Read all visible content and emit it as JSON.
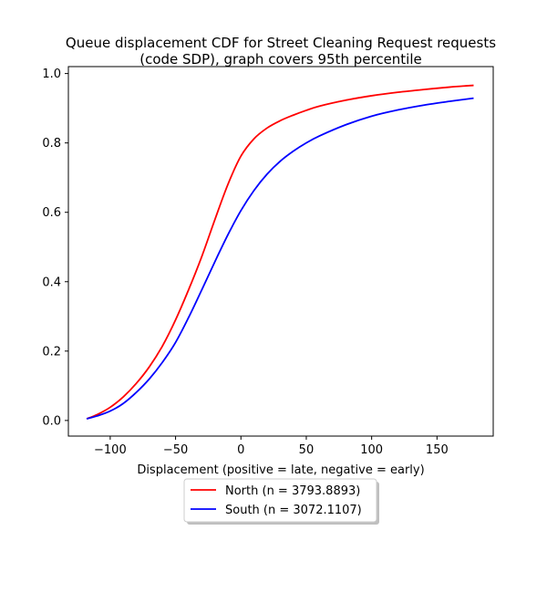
{
  "chart_data": {
    "type": "line",
    "title_lines": [
      "Queue displacement CDF for Street Cleaning Request  requests",
      "(code SDP), graph covers 95th percentile"
    ],
    "xlabel": "Displacement (positive = late, negative = early)",
    "ylabel": "",
    "xlim": [
      -132,
      193
    ],
    "ylim": [
      -0.045,
      1.02
    ],
    "xticks": [
      -100,
      -50,
      0,
      50,
      100,
      150
    ],
    "xtick_labels": [
      "−100",
      "−50",
      "0",
      "50",
      "100",
      "150"
    ],
    "yticks": [
      0.0,
      0.2,
      0.4,
      0.6,
      0.8,
      1.0
    ],
    "ytick_labels": [
      "0.0",
      "0.2",
      "0.4",
      "0.6",
      "0.8",
      "1.0"
    ],
    "grid": false,
    "legend_position": "below-center",
    "series": [
      {
        "name": "North (n = 3793.8893)",
        "color": "#ff0000",
        "x": [
          -118,
          -110,
          -100,
          -90,
          -80,
          -70,
          -60,
          -50,
          -40,
          -30,
          -20,
          -10,
          0,
          10,
          20,
          30,
          40,
          50,
          60,
          80,
          100,
          120,
          140,
          160,
          178
        ],
        "y": [
          0.005,
          0.017,
          0.038,
          0.068,
          0.107,
          0.155,
          0.215,
          0.29,
          0.377,
          0.472,
          0.578,
          0.68,
          0.762,
          0.812,
          0.843,
          0.864,
          0.88,
          0.894,
          0.906,
          0.923,
          0.936,
          0.946,
          0.954,
          0.961,
          0.966
        ]
      },
      {
        "name": "South (n = 3072.1107)",
        "color": "#0000ff",
        "x": [
          -118,
          -110,
          -100,
          -90,
          -80,
          -70,
          -60,
          -50,
          -40,
          -30,
          -20,
          -10,
          0,
          10,
          20,
          30,
          40,
          50,
          60,
          80,
          100,
          120,
          140,
          160,
          178
        ],
        "y": [
          0.005,
          0.013,
          0.027,
          0.049,
          0.081,
          0.12,
          0.168,
          0.225,
          0.297,
          0.376,
          0.457,
          0.535,
          0.605,
          0.663,
          0.71,
          0.747,
          0.776,
          0.8,
          0.82,
          0.852,
          0.877,
          0.895,
          0.909,
          0.92,
          0.929
        ]
      }
    ]
  }
}
